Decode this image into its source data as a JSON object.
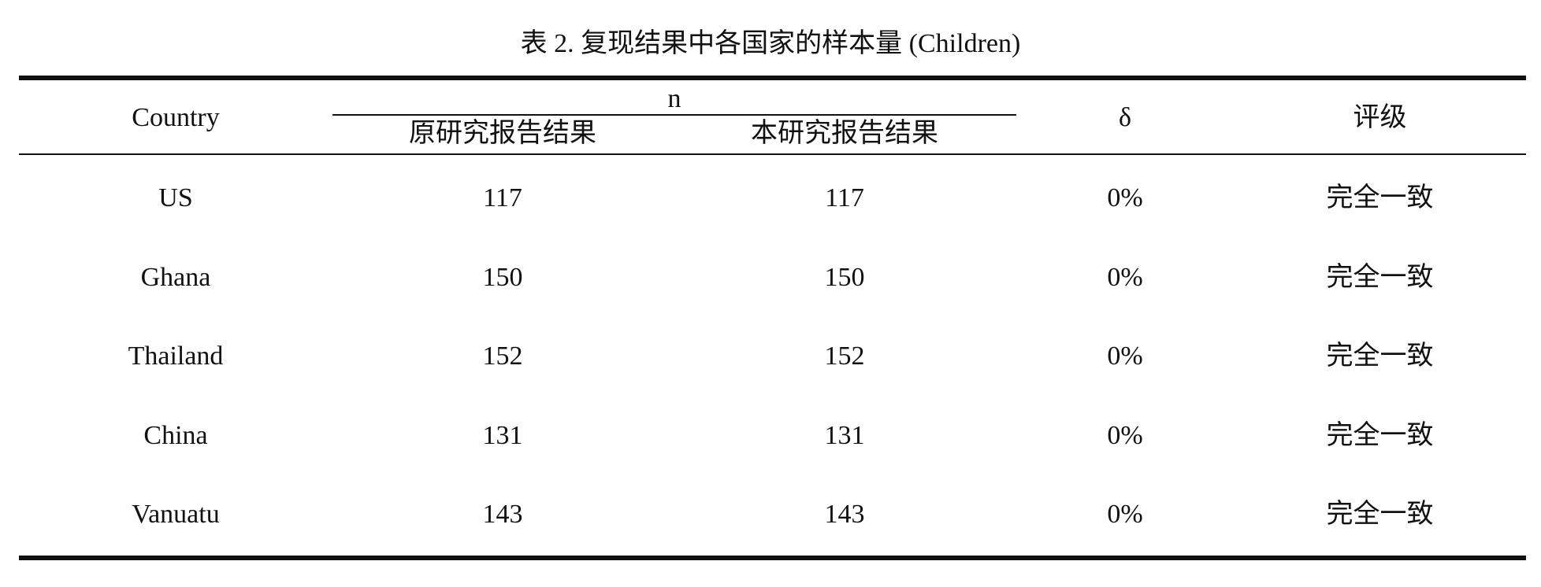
{
  "caption": "表 2. 复现结果中各国家的样本量 (Children)",
  "headers": {
    "country": "Country",
    "n": "n",
    "original": "原研究报告结果",
    "this_study": "本研究报告结果",
    "delta": "δ",
    "rating": "评级"
  },
  "rows": [
    {
      "country": "US",
      "original": "117",
      "this_study": "117",
      "delta": "0%",
      "rating": "完全一致"
    },
    {
      "country": "Ghana",
      "original": "150",
      "this_study": "150",
      "delta": "0%",
      "rating": "完全一致"
    },
    {
      "country": "Thailand",
      "original": "152",
      "this_study": "152",
      "delta": "0%",
      "rating": "完全一致"
    },
    {
      "country": "China",
      "original": "131",
      "this_study": "131",
      "delta": "0%",
      "rating": "完全一致"
    },
    {
      "country": "Vanuatu",
      "original": "143",
      "this_study": "143",
      "delta": "0%",
      "rating": "完全一致"
    }
  ]
}
